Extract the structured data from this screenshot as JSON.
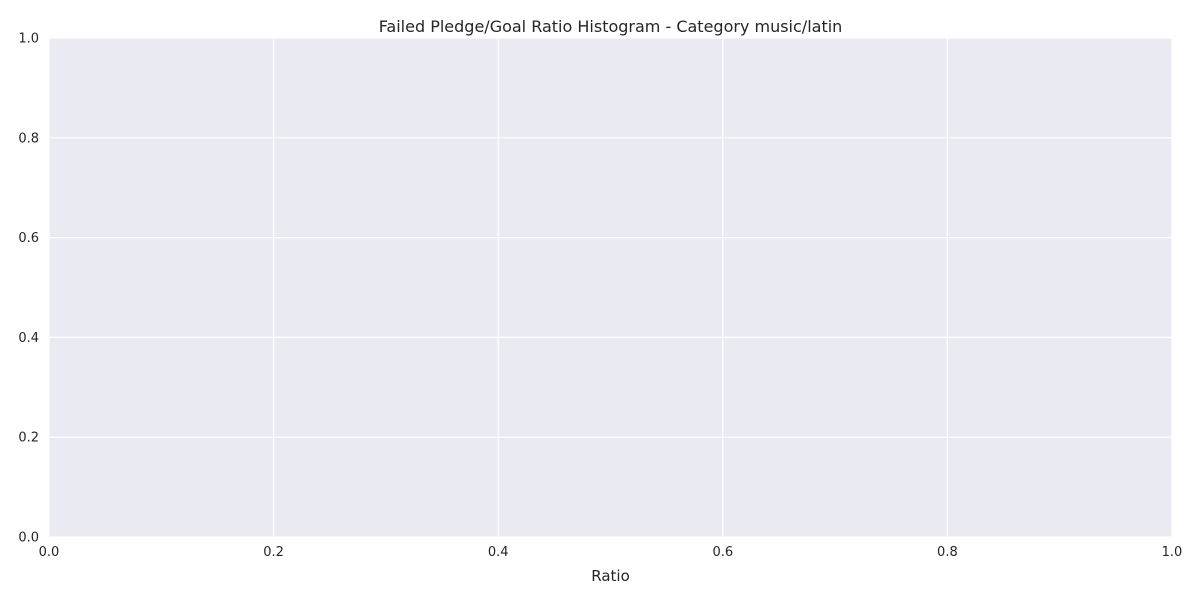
{
  "chart_data": {
    "type": "bar",
    "title": "Failed Pledge/Goal Ratio Histogram - Category music/latin",
    "xlabel": "Ratio",
    "ylabel": "",
    "xlim": [
      0.0,
      1.0
    ],
    "ylim": [
      0.0,
      1.0
    ],
    "xticks": [
      "0.0",
      "0.2",
      "0.4",
      "0.6",
      "0.8",
      "1.0"
    ],
    "yticks": [
      "0.0",
      "0.2",
      "0.4",
      "0.6",
      "0.8",
      "1.0"
    ],
    "categories": [],
    "values": [],
    "grid": true,
    "legend": "none",
    "colors": {
      "plot_background": "#EAEAF2",
      "grid": "#FFFFFF",
      "text": "#262626"
    }
  }
}
